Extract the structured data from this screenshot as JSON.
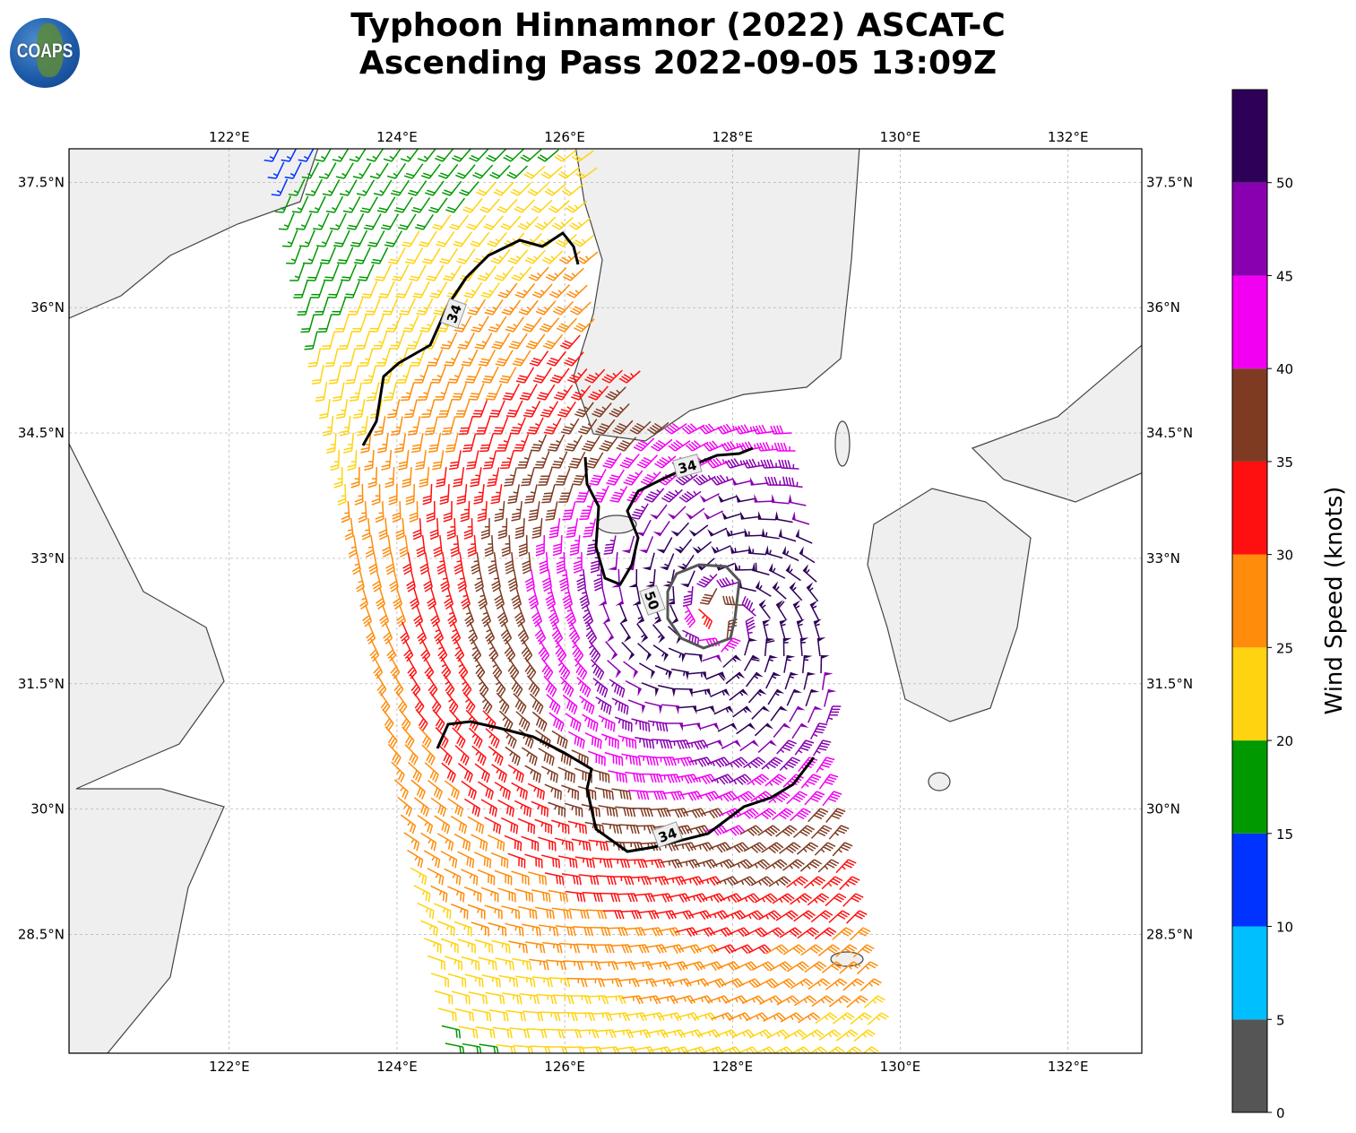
{
  "header": {
    "title_line1": "Typhoon Hinnamnor (2022) ASCAT-C",
    "title_line2": "Ascending Pass 2022-09-05 13:09Z",
    "logo_text": "COAPS"
  },
  "map": {
    "lon_range": [
      120.09,
      132.88
    ],
    "lat_range": [
      27.08,
      37.9
    ],
    "lon_ticks": [
      {
        "v": 122,
        "label": "122°E"
      },
      {
        "v": 124,
        "label": "124°E"
      },
      {
        "v": 126,
        "label": "126°E"
      },
      {
        "v": 128,
        "label": "128°E"
      },
      {
        "v": 130,
        "label": "130°E"
      },
      {
        "v": 132,
        "label": "132°E"
      }
    ],
    "lat_ticks": [
      {
        "v": 37.5,
        "label": "37.5°N"
      },
      {
        "v": 36,
        "label": "36°N"
      },
      {
        "v": 34.5,
        "label": "34.5°N"
      },
      {
        "v": 33,
        "label": "33°N"
      },
      {
        "v": 31.5,
        "label": "31.5°N"
      },
      {
        "v": 30,
        "label": "30°N"
      },
      {
        "v": 28.5,
        "label": "28.5°N"
      }
    ],
    "storm_center": {
      "lon": 127.85,
      "lat": 32.3
    },
    "contour_labels": [
      "34",
      "34",
      "34",
      "50"
    ]
  },
  "colorbar": {
    "label": "Wind Speed (knots)",
    "ticks": [
      "0",
      "5",
      "10",
      "15",
      "20",
      "25",
      "30",
      "35",
      "40",
      "45",
      "50"
    ],
    "colors": [
      "#555555",
      "#00bfff",
      "#0033ff",
      "#009900",
      "#ffd310",
      "#ff8c0a",
      "#ff1010",
      "#7f3a22",
      "#f200f2",
      "#8800b0",
      "#2e0058"
    ]
  }
}
